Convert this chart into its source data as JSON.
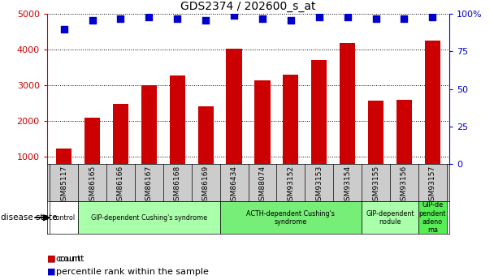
{
  "title": "GDS2374 / 202600_s_at",
  "samples": [
    "GSM85117",
    "GSM86165",
    "GSM86166",
    "GSM86167",
    "GSM86168",
    "GSM86169",
    "GSM86434",
    "GSM88074",
    "GSM93152",
    "GSM93153",
    "GSM93154",
    "GSM93155",
    "GSM93156",
    "GSM93157"
  ],
  "counts": [
    1220,
    2100,
    2480,
    3000,
    3270,
    2420,
    4020,
    3150,
    3310,
    3710,
    4180,
    2580,
    2600,
    4250
  ],
  "percentiles": [
    90,
    96,
    97,
    98,
    97,
    96,
    99,
    97,
    96,
    98,
    98,
    97,
    97,
    98
  ],
  "ylim_left": [
    800,
    5000
  ],
  "ylim_right": [
    0,
    100
  ],
  "yticks_left": [
    1000,
    2000,
    3000,
    4000,
    5000
  ],
  "yticks_right": [
    0,
    25,
    50,
    75,
    100
  ],
  "bar_color": "#cc0000",
  "dot_color": "#0000cc",
  "disease_groups": [
    {
      "label": "control",
      "start": 0,
      "end": 1,
      "color": "#ffffff",
      "text_color": "#000000"
    },
    {
      "label": "GIP-dependent Cushing's syndrome",
      "start": 1,
      "end": 6,
      "color": "#aaffaa",
      "text_color": "#000000"
    },
    {
      "label": "ACTH-dependent Cushing's\nsyndrome",
      "start": 6,
      "end": 11,
      "color": "#77ee77",
      "text_color": "#000000"
    },
    {
      "label": "GIP-dependent\nnodule",
      "start": 11,
      "end": 13,
      "color": "#aaffaa",
      "text_color": "#000000"
    },
    {
      "label": "GIP-de\npendent\nadeno\nma",
      "start": 13,
      "end": 14,
      "color": "#55ee55",
      "text_color": "#000000"
    }
  ],
  "xlabel_disease": "disease state",
  "legend_count": "count",
  "legend_percentile": "percentile rank within the sample",
  "tick_label_color_left": "#cc0000",
  "tick_label_color_right": "#0000cc",
  "title_color": "#000000",
  "bar_width": 0.55,
  "dot_size": 35,
  "sample_band_color": "#cccccc",
  "ytick_right_labels": [
    "0",
    "25",
    "50",
    "75",
    "100%"
  ]
}
